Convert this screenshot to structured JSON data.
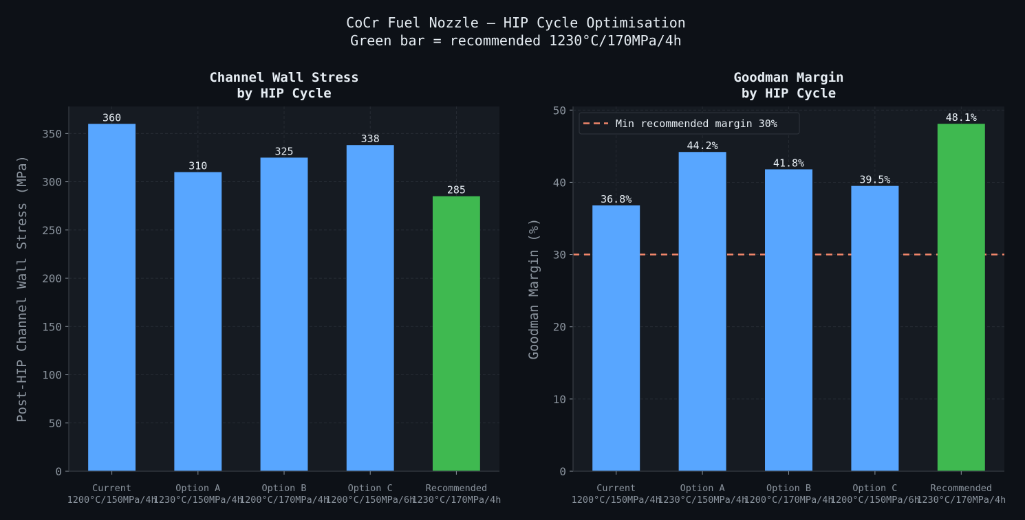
{
  "figure": {
    "title_line1": "CoCr Fuel Nozzle — HIP Cycle Optimisation",
    "title_line2": "Green bar = recommended 1230°C/170MPa/4h"
  },
  "colors": {
    "background": "#0d1117",
    "plot_background": "#161b22",
    "bar_default": "#58a6ff",
    "bar_recommended": "#3fb950",
    "threshold_line": "#f0866a",
    "text": "#e6edf3",
    "muted_text": "#8b949e",
    "grid": "#2a3038",
    "axis": "#30363d"
  },
  "chart_data": [
    {
      "type": "bar",
      "title_line1": "Channel Wall Stress",
      "title_line2": "by HIP Cycle",
      "xlabel": "",
      "ylabel": "Post-HIP Channel Wall Stress (MPa)",
      "categories": [
        {
          "name": "Current",
          "params": "1200°C/150MPa/4h"
        },
        {
          "name": "Option A",
          "params": "1230°C/150MPa/4h"
        },
        {
          "name": "Option B",
          "params": "1200°C/170MPa/4h"
        },
        {
          "name": "Option C",
          "params": "1200°C/150MPa/6h"
        },
        {
          "name": "Recommended",
          "params": "1230°C/170MPa/4h"
        }
      ],
      "values": [
        360,
        310,
        325,
        338,
        285
      ],
      "value_labels": [
        "360",
        "310",
        "325",
        "338",
        "285"
      ],
      "highlight_index": 4,
      "ylim": [
        0,
        378
      ],
      "yticks": [
        0,
        50,
        100,
        150,
        200,
        250,
        300,
        350
      ],
      "grid": true
    },
    {
      "type": "bar",
      "title_line1": "Goodman Margin",
      "title_line2": "by HIP Cycle",
      "xlabel": "",
      "ylabel": "Goodman Margin (%)",
      "categories": [
        {
          "name": "Current",
          "params": "1200°C/150MPa/4h"
        },
        {
          "name": "Option A",
          "params": "1230°C/150MPa/4h"
        },
        {
          "name": "Option B",
          "params": "1200°C/170MPa/4h"
        },
        {
          "name": "Option C",
          "params": "1200°C/150MPa/6h"
        },
        {
          "name": "Recommended",
          "params": "1230°C/170MPa/4h"
        }
      ],
      "values": [
        36.8,
        44.2,
        41.8,
        39.5,
        48.1
      ],
      "value_labels": [
        "36.8%",
        "44.2%",
        "41.8%",
        "39.5%",
        "48.1%"
      ],
      "highlight_index": 4,
      "ylim": [
        0,
        50.5
      ],
      "yticks": [
        0,
        10,
        20,
        30,
        40,
        50
      ],
      "grid": true,
      "reference_line": {
        "value": 30,
        "label": "Min recommended margin 30%"
      },
      "legend_position": "top-left"
    }
  ]
}
